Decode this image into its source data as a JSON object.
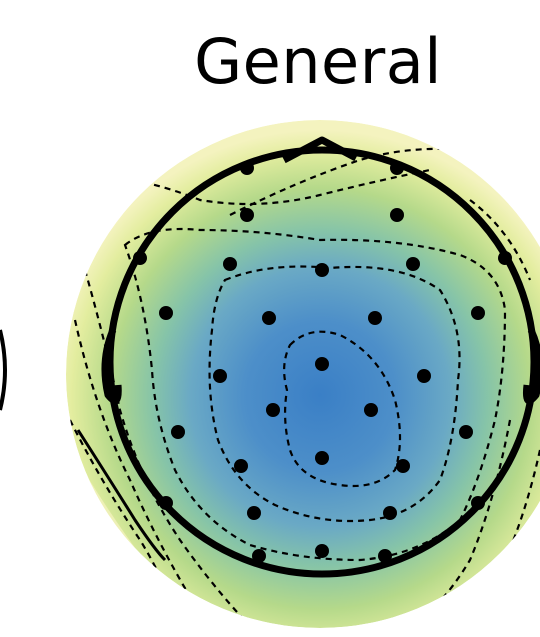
{
  "title": "General",
  "colors": {
    "center": "#3a7fc6",
    "mid_blue": "#5fa3c9",
    "teal": "#7dbfae",
    "green": "#b3d889",
    "yellow": "#ecef9e",
    "pale": "#f4f3bf",
    "outline": "#000000",
    "contour": "#000000",
    "electrode": "#000000"
  },
  "icons": {
    "head": "head-outline",
    "nose": "nose-icon",
    "ear": "ear-icon",
    "electrode": "electrode-dot"
  }
}
